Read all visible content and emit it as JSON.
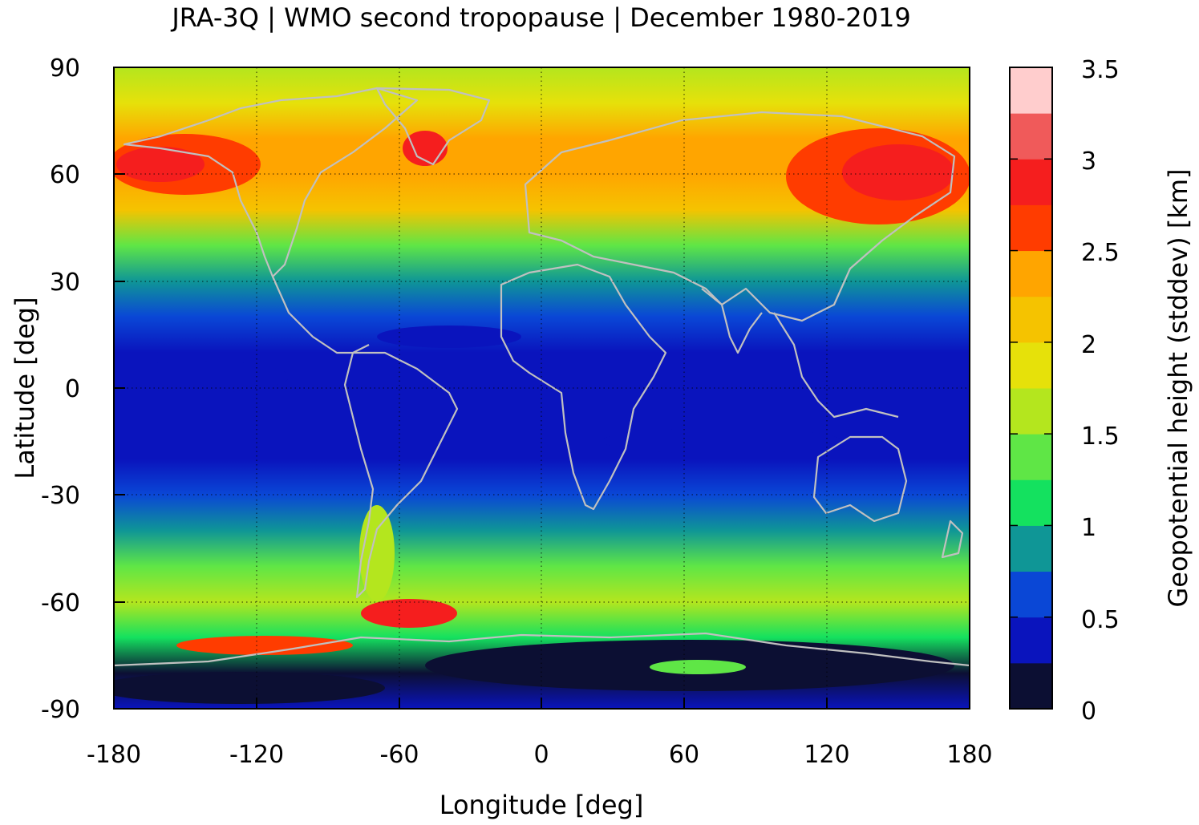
{
  "title": "JRA-3Q | WMO second tropopause | December 1980-2019",
  "chart_data": {
    "type": "heatmap",
    "title": "JRA-3Q | WMO second tropopause | December 1980-2019",
    "xlabel": "Longitude [deg]",
    "ylabel": "Latitude [deg]",
    "xlim": [
      -180,
      180
    ],
    "ylim": [
      -90,
      90
    ],
    "x_ticks": [
      "-180",
      "-120",
      "-60",
      "0",
      "60",
      "120",
      "180"
    ],
    "y_ticks": [
      "90",
      "60",
      "30",
      "0",
      "-30",
      "-60",
      "-90"
    ],
    "grid": true,
    "coastlines": true,
    "colorbar": {
      "label": "Geopotential height (stddev) [km]",
      "range": [
        0,
        3.5
      ],
      "levels": [
        0,
        0.25,
        0.5,
        0.75,
        1.0,
        1.25,
        1.5,
        1.75,
        2.0,
        2.25,
        2.5,
        2.75,
        3.0,
        3.25,
        3.5
      ],
      "tick_labels": [
        "3.5",
        "3",
        "2.5",
        "2",
        "1.5",
        "1",
        "0.5",
        "0"
      ],
      "colors": [
        "#0c0f33",
        "#0a14bd",
        "#0a47d6",
        "#0f9696",
        "#14e15f",
        "#5fe646",
        "#b4e61e",
        "#e6e10a",
        "#f5c300",
        "#ffa500",
        "#ff3c00",
        "#f51e1e",
        "#f05a5a",
        "#ffcdcd"
      ]
    },
    "zonal_mean_stddev_km": [
      {
        "lat": 90,
        "value": 1.7
      },
      {
        "lat": 80,
        "value": 1.9
      },
      {
        "lat": 70,
        "value": 2.3
      },
      {
        "lat": 60,
        "value": 2.4
      },
      {
        "lat": 50,
        "value": 2.0
      },
      {
        "lat": 40,
        "value": 1.4
      },
      {
        "lat": 30,
        "value": 0.85
      },
      {
        "lat": 20,
        "value": 0.55
      },
      {
        "lat": 10,
        "value": 0.45
      },
      {
        "lat": 0,
        "value": 0.45
      },
      {
        "lat": -10,
        "value": 0.4
      },
      {
        "lat": -20,
        "value": 0.45
      },
      {
        "lat": -30,
        "value": 0.6
      },
      {
        "lat": -40,
        "value": 0.85
      },
      {
        "lat": -50,
        "value": 1.3
      },
      {
        "lat": -60,
        "value": 1.7
      },
      {
        "lat": -70,
        "value": 1.0
      },
      {
        "lat": -80,
        "value": 0.2
      },
      {
        "lat": -90,
        "value": 0.4
      }
    ]
  }
}
